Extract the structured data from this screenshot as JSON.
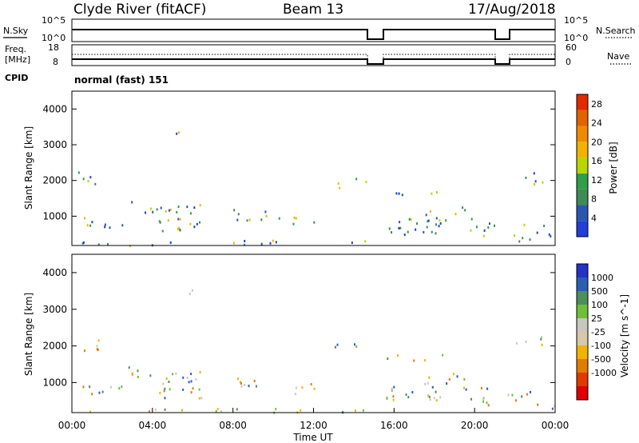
{
  "header": {
    "station": "Clyde River (fitACF)",
    "beam": "Beam 13",
    "date": "17/Aug/2018"
  },
  "colors": {
    "power_scale": [
      "#1f3fd8",
      "#2a56b0",
      "#3f8a56",
      "#2f9e48",
      "#b8d600",
      "#f2b300",
      "#f08b00",
      "#e06400",
      "#e02a00"
    ],
    "velocity_scale": [
      "#2432c8",
      "#2a5fb0",
      "#4c8f5a",
      "#6fbf3a",
      "#c8c8c0",
      "#d6c8a8",
      "#f2b300",
      "#e07c00",
      "#e03a00",
      "#e00000"
    ]
  },
  "chart_data": [
    {
      "type": "line",
      "name": "N.Sky / N.Search panel",
      "left_label": "N.Sky",
      "right_label": "N.Search",
      "left_ticks": [
        "10^5",
        "10^0"
      ],
      "right_ticks": [
        "10^5",
        "10^0"
      ],
      "xlim": [
        0,
        24
      ],
      "gaps": [
        [
          14.8,
          15.6
        ],
        [
          21.0,
          21.6
        ]
      ]
    },
    {
      "type": "line",
      "name": "Freq / Nave panel",
      "left_label_1": "Freq.",
      "left_label_2": "[MHz]",
      "right_label": "Nave",
      "left_ticks": [
        "18",
        "8"
      ],
      "right_ticks": [
        "60",
        "0"
      ],
      "xlim": [
        0,
        24
      ],
      "gaps": [
        [
          14.8,
          15.6
        ],
        [
          21.0,
          21.6
        ]
      ]
    },
    {
      "type": "heatmap",
      "name": "Power",
      "cpid_label": "CPID",
      "mode": "normal (fast) 151",
      "ylabel": "Slant Range [km]",
      "yticks": [
        "1000",
        "2000",
        "3000",
        "4000"
      ],
      "ylim": [
        180,
        4500
      ],
      "colorbar_label": "Power [dB]",
      "colorbar_ticks": [
        "4",
        "8",
        "12",
        "16",
        "20",
        "24",
        "28"
      ],
      "colorbar_range": [
        0,
        30
      ],
      "xlim": [
        0,
        24
      ]
    },
    {
      "type": "heatmap",
      "name": "Velocity",
      "ylabel": "Slant Range [km]",
      "yticks": [
        "1000",
        "2000",
        "3000",
        "4000"
      ],
      "ylim": [
        180,
        4500
      ],
      "colorbar_label": "Velocity [m s^-1]",
      "colorbar_ticks": [
        "1000",
        "500",
        "100",
        "25",
        "-25",
        "-100",
        "-500",
        "-1000"
      ],
      "xlim": [
        0,
        24
      ],
      "xticks": [
        "00:00",
        "04:00",
        "08:00",
        "12:00",
        "16:00",
        "20:00",
        "00:00"
      ],
      "xlabel": "Time UT"
    }
  ]
}
